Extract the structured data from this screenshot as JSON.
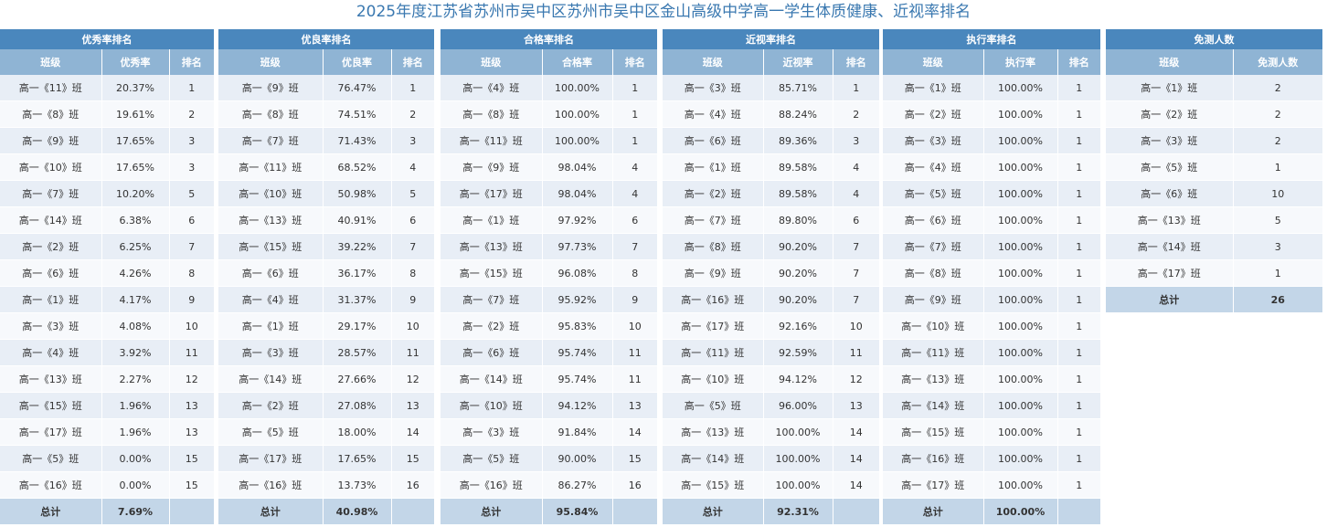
{
  "title": "2025年度江苏省苏州市吴中区苏州市吴中区金山高级中学高一学生体质健康、近视率排名",
  "tables": [
    {
      "key": "excellent",
      "heading": "优秀率排名",
      "columns": [
        "班级",
        "优秀率",
        "排名"
      ],
      "rows": [
        [
          "高一《11》班",
          "20.37%",
          "1"
        ],
        [
          "高一《8》班",
          "19.61%",
          "2"
        ],
        [
          "高一《9》班",
          "17.65%",
          "3"
        ],
        [
          "高一《10》班",
          "17.65%",
          "3"
        ],
        [
          "高一《7》班",
          "10.20%",
          "5"
        ],
        [
          "高一《14》班",
          "6.38%",
          "6"
        ],
        [
          "高一《2》班",
          "6.25%",
          "7"
        ],
        [
          "高一《6》班",
          "4.26%",
          "8"
        ],
        [
          "高一《1》班",
          "4.17%",
          "9"
        ],
        [
          "高一《3》班",
          "4.08%",
          "10"
        ],
        [
          "高一《4》班",
          "3.92%",
          "11"
        ],
        [
          "高一《13》班",
          "2.27%",
          "12"
        ],
        [
          "高一《15》班",
          "1.96%",
          "13"
        ],
        [
          "高一《17》班",
          "1.96%",
          "13"
        ],
        [
          "高一《5》班",
          "0.00%",
          "15"
        ],
        [
          "高一《16》班",
          "0.00%",
          "15"
        ]
      ],
      "total": [
        "总计",
        "7.69%",
        ""
      ]
    },
    {
      "key": "good",
      "heading": "优良率排名",
      "columns": [
        "班级",
        "优良率",
        "排名"
      ],
      "rows": [
        [
          "高一《9》班",
          "76.47%",
          "1"
        ],
        [
          "高一《8》班",
          "74.51%",
          "2"
        ],
        [
          "高一《7》班",
          "71.43%",
          "3"
        ],
        [
          "高一《11》班",
          "68.52%",
          "4"
        ],
        [
          "高一《10》班",
          "50.98%",
          "5"
        ],
        [
          "高一《13》班",
          "40.91%",
          "6"
        ],
        [
          "高一《15》班",
          "39.22%",
          "7"
        ],
        [
          "高一《6》班",
          "36.17%",
          "8"
        ],
        [
          "高一《4》班",
          "31.37%",
          "9"
        ],
        [
          "高一《1》班",
          "29.17%",
          "10"
        ],
        [
          "高一《3》班",
          "28.57%",
          "11"
        ],
        [
          "高一《14》班",
          "27.66%",
          "12"
        ],
        [
          "高一《2》班",
          "27.08%",
          "13"
        ],
        [
          "高一《5》班",
          "18.00%",
          "14"
        ],
        [
          "高一《17》班",
          "17.65%",
          "15"
        ],
        [
          "高一《16》班",
          "13.73%",
          "16"
        ]
      ],
      "total": [
        "总计",
        "40.98%",
        ""
      ]
    },
    {
      "key": "pass",
      "heading": "合格率排名",
      "columns": [
        "班级",
        "合格率",
        "排名"
      ],
      "rows": [
        [
          "高一《4》班",
          "100.00%",
          "1"
        ],
        [
          "高一《8》班",
          "100.00%",
          "1"
        ],
        [
          "高一《11》班",
          "100.00%",
          "1"
        ],
        [
          "高一《9》班",
          "98.04%",
          "4"
        ],
        [
          "高一《17》班",
          "98.04%",
          "4"
        ],
        [
          "高一《1》班",
          "97.92%",
          "6"
        ],
        [
          "高一《13》班",
          "97.73%",
          "7"
        ],
        [
          "高一《15》班",
          "96.08%",
          "8"
        ],
        [
          "高一《7》班",
          "95.92%",
          "9"
        ],
        [
          "高一《2》班",
          "95.83%",
          "10"
        ],
        [
          "高一《6》班",
          "95.74%",
          "11"
        ],
        [
          "高一《14》班",
          "95.74%",
          "11"
        ],
        [
          "高一《10》班",
          "94.12%",
          "13"
        ],
        [
          "高一《3》班",
          "91.84%",
          "14"
        ],
        [
          "高一《5》班",
          "90.00%",
          "15"
        ],
        [
          "高一《16》班",
          "86.27%",
          "16"
        ]
      ],
      "total": [
        "总计",
        "95.84%",
        ""
      ]
    },
    {
      "key": "myopia",
      "heading": "近视率排名",
      "columns": [
        "班级",
        "近视率",
        "排名"
      ],
      "rows": [
        [
          "高一《3》班",
          "85.71%",
          "1"
        ],
        [
          "高一《4》班",
          "88.24%",
          "2"
        ],
        [
          "高一《6》班",
          "89.36%",
          "3"
        ],
        [
          "高一《1》班",
          "89.58%",
          "4"
        ],
        [
          "高一《2》班",
          "89.58%",
          "4"
        ],
        [
          "高一《7》班",
          "89.80%",
          "6"
        ],
        [
          "高一《8》班",
          "90.20%",
          "7"
        ],
        [
          "高一《9》班",
          "90.20%",
          "7"
        ],
        [
          "高一《16》班",
          "90.20%",
          "7"
        ],
        [
          "高一《17》班",
          "92.16%",
          "10"
        ],
        [
          "高一《11》班",
          "92.59%",
          "11"
        ],
        [
          "高一《10》班",
          "94.12%",
          "12"
        ],
        [
          "高一《5》班",
          "96.00%",
          "13"
        ],
        [
          "高一《13》班",
          "100.00%",
          "14"
        ],
        [
          "高一《14》班",
          "100.00%",
          "14"
        ],
        [
          "高一《15》班",
          "100.00%",
          "14"
        ]
      ],
      "total": [
        "总计",
        "92.31%",
        ""
      ]
    },
    {
      "key": "execution",
      "heading": "执行率排名",
      "columns": [
        "班级",
        "执行率",
        "排名"
      ],
      "rows": [
        [
          "高一《1》班",
          "100.00%",
          "1"
        ],
        [
          "高一《2》班",
          "100.00%",
          "1"
        ],
        [
          "高一《3》班",
          "100.00%",
          "1"
        ],
        [
          "高一《4》班",
          "100.00%",
          "1"
        ],
        [
          "高一《5》班",
          "100.00%",
          "1"
        ],
        [
          "高一《6》班",
          "100.00%",
          "1"
        ],
        [
          "高一《7》班",
          "100.00%",
          "1"
        ],
        [
          "高一《8》班",
          "100.00%",
          "1"
        ],
        [
          "高一《9》班",
          "100.00%",
          "1"
        ],
        [
          "高一《10》班",
          "100.00%",
          "1"
        ],
        [
          "高一《11》班",
          "100.00%",
          "1"
        ],
        [
          "高一《13》班",
          "100.00%",
          "1"
        ],
        [
          "高一《14》班",
          "100.00%",
          "1"
        ],
        [
          "高一《15》班",
          "100.00%",
          "1"
        ],
        [
          "高一《16》班",
          "100.00%",
          "1"
        ],
        [
          "高一《17》班",
          "100.00%",
          "1"
        ]
      ],
      "total": [
        "总计",
        "100.00%",
        ""
      ]
    },
    {
      "key": "exempt",
      "heading": "免测人数",
      "columns": [
        "班级",
        "免测人数"
      ],
      "rows": [
        [
          "高一《1》班",
          "2"
        ],
        [
          "高一《2》班",
          "2"
        ],
        [
          "高一《3》班",
          "2"
        ],
        [
          "高一《5》班",
          "1"
        ],
        [
          "高一《6》班",
          "10"
        ],
        [
          "高一《13》班",
          "5"
        ],
        [
          "高一《14》班",
          "3"
        ],
        [
          "高一《17》班",
          "1"
        ]
      ],
      "total": [
        "总计",
        "26"
      ]
    }
  ]
}
